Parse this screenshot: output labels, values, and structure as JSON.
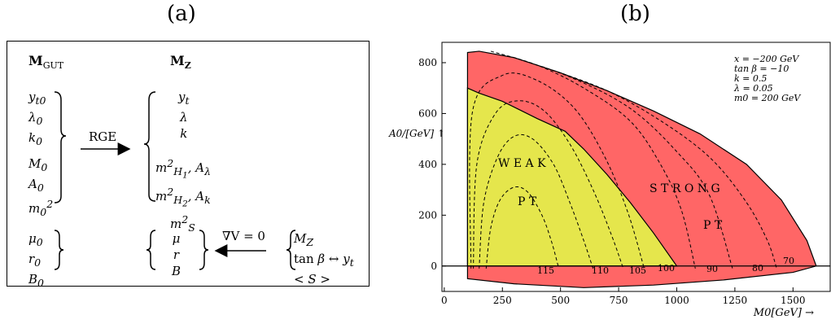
{
  "panels": {
    "a_label": "(a)",
    "b_label": "(b)"
  },
  "diagram": {
    "col_left_header": "M_GUT",
    "col_right_header": "M_Z",
    "left_group1": [
      "y_t0",
      "λ_0",
      "k_0"
    ],
    "left_group2": [
      "M_0",
      "A_0",
      "m_0^2"
    ],
    "right_group1": [
      "y_t",
      "λ",
      "k"
    ],
    "right_group2": [
      "m_H1^2, A_λ",
      "m_H2^2, A_k",
      "m_S^2"
    ],
    "rge_label": "RGE",
    "left_group3": [
      "μ_0",
      "r_0",
      "B_0"
    ],
    "right_group3": [
      "μ",
      "r",
      "B"
    ],
    "grad_label": "∇V = 0",
    "inputs": [
      "M_Z",
      "tan β ↔ y_t",
      "< S >"
    ]
  },
  "chart_data": {
    "type": "area",
    "xlabel": "M0[GeV] →",
    "ylabel": "A0/[GeV] ↑",
    "xlim": [
      -10,
      1660
    ],
    "ylim": [
      -100,
      880
    ],
    "xticks": [
      0,
      250,
      500,
      750,
      1000,
      1250,
      1500
    ],
    "yticks": [
      0,
      200,
      400,
      600,
      800
    ],
    "grid": false,
    "legend": {
      "placement": "top-right",
      "lines": [
        "x = −200 GeV",
        "tan β = −10",
        "k = 0.5",
        "λ = 0.05",
        "m0 = 200 GeV"
      ]
    },
    "regions": [
      {
        "name": "STRONG PT",
        "color": "#ff6666",
        "boundary": [
          [
            100,
            840
          ],
          [
            150,
            845
          ],
          [
            300,
            820
          ],
          [
            500,
            760
          ],
          [
            700,
            690
          ],
          [
            900,
            610
          ],
          [
            1100,
            520
          ],
          [
            1300,
            400
          ],
          [
            1450,
            260
          ],
          [
            1560,
            100
          ],
          [
            1600,
            0
          ],
          [
            1500,
            -25
          ],
          [
            1200,
            -55
          ],
          [
            900,
            -75
          ],
          [
            600,
            -85
          ],
          [
            300,
            -70
          ],
          [
            100,
            -50
          ]
        ]
      },
      {
        "name": "WEAK PT",
        "color": "#e5e64c",
        "boundary": [
          [
            100,
            700
          ],
          [
            150,
            680
          ],
          [
            250,
            648
          ],
          [
            400,
            580
          ],
          [
            520,
            530
          ],
          [
            600,
            460
          ],
          [
            700,
            360
          ],
          [
            800,
            250
          ],
          [
            900,
            130
          ],
          [
            1000,
            0
          ],
          [
            100,
            0
          ]
        ]
      }
    ],
    "region_labels": [
      "W E A K",
      "P T",
      "S T R O N G",
      "P T"
    ],
    "contour_labels": [
      "115",
      "110",
      "105",
      "100",
      "90",
      "80",
      "70"
    ],
    "contours": [
      {
        "label": "115",
        "points": [
          [
            180,
            -10
          ],
          [
            200,
            150
          ],
          [
            240,
            260
          ],
          [
            300,
            310
          ],
          [
            360,
            290
          ],
          [
            420,
            200
          ],
          [
            460,
            100
          ],
          [
            490,
            0
          ]
        ]
      },
      {
        "label": "110",
        "points": [
          [
            150,
            -10
          ],
          [
            170,
            250
          ],
          [
            230,
            430
          ],
          [
            300,
            510
          ],
          [
            380,
            500
          ],
          [
            470,
            400
          ],
          [
            540,
            250
          ],
          [
            600,
            100
          ],
          [
            640,
            -10
          ]
        ]
      },
      {
        "label": "105",
        "points": [
          [
            125,
            -10
          ],
          [
            140,
            400
          ],
          [
            220,
            600
          ],
          [
            320,
            650
          ],
          [
            430,
            610
          ],
          [
            540,
            480
          ],
          [
            640,
            300
          ],
          [
            720,
            120
          ],
          [
            770,
            -10
          ]
        ]
      },
      {
        "label": "100",
        "points": [
          [
            115,
            -10
          ],
          [
            120,
            600
          ],
          [
            250,
            750
          ],
          [
            400,
            730
          ],
          [
            560,
            620
          ],
          [
            690,
            430
          ],
          [
            790,
            210
          ],
          [
            860,
            -10
          ]
        ]
      },
      {
        "label": "90",
        "points": [
          [
            200,
            845
          ],
          [
            400,
            790
          ],
          [
            600,
            700
          ],
          [
            800,
            570
          ],
          [
            930,
            400
          ],
          [
            1020,
            220
          ],
          [
            1080,
            -10
          ]
        ]
      },
      {
        "label": "80",
        "points": [
          [
            300,
            820
          ],
          [
            550,
            740
          ],
          [
            800,
            620
          ],
          [
            1000,
            450
          ],
          [
            1140,
            280
          ],
          [
            1240,
            -10
          ]
        ]
      },
      {
        "label": "70",
        "points": [
          [
            420,
            785
          ],
          [
            700,
            690
          ],
          [
            950,
            560
          ],
          [
            1150,
            420
          ],
          [
            1300,
            250
          ],
          [
            1390,
            100
          ],
          [
            1430,
            -10
          ]
        ]
      }
    ]
  }
}
